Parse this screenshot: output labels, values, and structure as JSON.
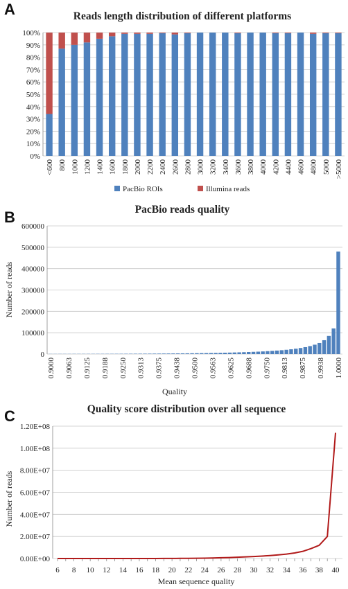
{
  "colors": {
    "pacbio_blue": "#4f81bd",
    "illumina_red": "#c0504d",
    "line_red": "#b11a1a",
    "grid": "#c8c8c8",
    "axis": "#888888"
  },
  "chart_data": [
    {
      "panel": "A",
      "type": "bar",
      "stacked": true,
      "title": "Reads length distribution of different platforms",
      "xlabel": "",
      "ylabel": "",
      "ylim": [
        0,
        100
      ],
      "yticks": [
        "0%",
        "10%",
        "20%",
        "30%",
        "40%",
        "50%",
        "60%",
        "70%",
        "80%",
        "90%",
        "100%"
      ],
      "categories": [
        "<600",
        "800",
        "1000",
        "1200",
        "1400",
        "1600",
        "1800",
        "2000",
        "2200",
        "2400",
        "2600",
        "2800",
        "3000",
        "3200",
        "3400",
        "3600",
        "3800",
        "4000",
        "4200",
        "4400",
        "4600",
        "4800",
        "5000",
        ">5000"
      ],
      "series": [
        {
          "name": "PacBio ROIs",
          "color": "#4f81bd",
          "values": [
            34,
            87,
            90,
            92,
            95,
            97,
            99,
            99,
            99,
            99.5,
            98.5,
            99.5,
            100,
            100,
            100,
            99.5,
            100,
            100,
            99.5,
            99.5,
            100,
            99,
            99.5,
            99.5
          ]
        },
        {
          "name": "Illumina reads",
          "color": "#c0504d",
          "values": [
            66,
            13,
            10,
            8,
            5,
            3,
            1,
            1,
            1,
            0.5,
            1.5,
            0.5,
            0,
            0,
            0,
            0.5,
            0,
            0,
            0.5,
            0.5,
            0,
            1,
            0.5,
            0.5
          ]
        }
      ],
      "legend": "bottom",
      "grid": true
    },
    {
      "panel": "B",
      "type": "bar",
      "title": "PacBio reads quality",
      "xlabel": "Quality",
      "ylabel": "Number of reads",
      "ylim": [
        0,
        600000
      ],
      "yticks": [
        "0",
        "100000",
        "200000",
        "300000",
        "400000",
        "500000",
        "600000"
      ],
      "x_tick_labels": [
        "0.9000",
        "0.9063",
        "0.9125",
        "0.9188",
        "0.9250",
        "0.9313",
        "0.9375",
        "0.9438",
        "0.9500",
        "0.9563",
        "0.9625",
        "0.9688",
        "0.9750",
        "0.9813",
        "0.9875",
        "0.9938",
        "1.0000"
      ],
      "x_range": [
        0.9,
        1.0
      ],
      "bin_width": 0.0015625,
      "values": [
        800,
        800,
        900,
        900,
        900,
        1000,
        1000,
        1000,
        1100,
        1100,
        1200,
        1200,
        1300,
        1300,
        1400,
        1500,
        1600,
        1700,
        1800,
        1900,
        2000,
        2100,
        2300,
        2400,
        2600,
        2800,
        3000,
        3200,
        3400,
        3600,
        3900,
        4200,
        4500,
        4800,
        5200,
        5600,
        6000,
        6500,
        7000,
        7600,
        8200,
        8900,
        9700,
        10500,
        11400,
        12500,
        13700,
        15000,
        16500,
        18200,
        20200,
        22500,
        25200,
        28500,
        32500,
        37500,
        44000,
        52000,
        65000,
        85000,
        120000,
        480000
      ],
      "color": "#4f81bd",
      "grid": true
    },
    {
      "panel": "C",
      "type": "line",
      "title": "Quality score distribution over all sequence",
      "xlabel": "Mean sequence quality",
      "ylabel": "Number of reads",
      "ylim": [
        0,
        120000000
      ],
      "yticks": [
        "0.00E+00",
        "2.00E+07",
        "4.00E+07",
        "6.00E+07",
        "8.00E+07",
        "1.00E+08",
        "1.20E+08"
      ],
      "x": [
        6,
        7,
        8,
        9,
        10,
        11,
        12,
        13,
        14,
        15,
        16,
        17,
        18,
        19,
        20,
        21,
        22,
        23,
        24,
        25,
        26,
        27,
        28,
        29,
        30,
        31,
        32,
        33,
        34,
        35,
        36,
        37,
        38,
        39,
        40
      ],
      "x_tick_labels": [
        "6",
        "8",
        "10",
        "12",
        "14",
        "16",
        "18",
        "20",
        "22",
        "24",
        "26",
        "28",
        "30",
        "32",
        "34",
        "36",
        "38",
        "40"
      ],
      "values": [
        0,
        0,
        0,
        0,
        0,
        0,
        0,
        0,
        0,
        0,
        10000,
        20000,
        30000,
        50000,
        80000,
        120000,
        180000,
        250000,
        350000,
        500000,
        700000,
        900000,
        1200000,
        1500000,
        1800000,
        2200000,
        2700000,
        3300000,
        4000000,
        5000000,
        6500000,
        9000000,
        12000000,
        20000000,
        114000000
      ],
      "color": "#b11a1a",
      "grid": true
    }
  ]
}
